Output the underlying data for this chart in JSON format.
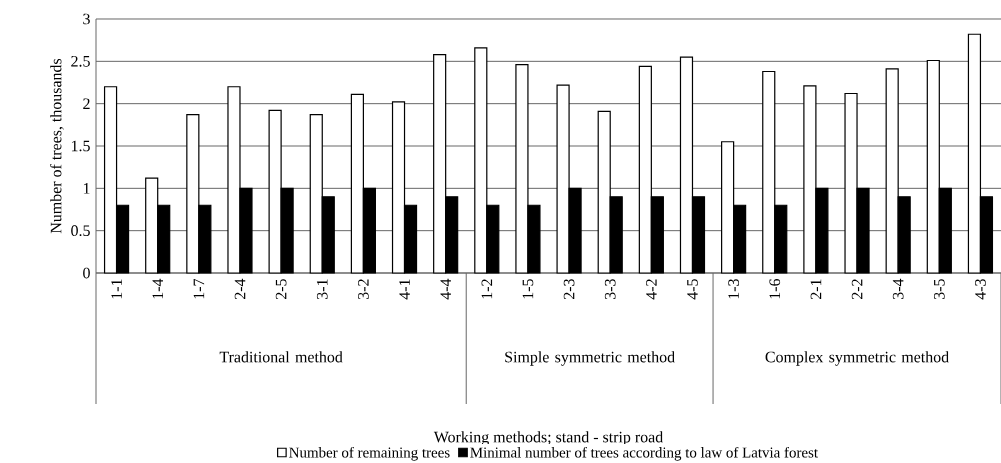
{
  "chart_data": {
    "type": "bar",
    "ylabel": "Number of trees, thousands",
    "categories": [
      "1-1",
      "1-4",
      "1-7",
      "2-4",
      "2-5",
      "3-1",
      "3-2",
      "4-1",
      "4-4",
      "1-2",
      "1-5",
      "2-3",
      "3-3",
      "4-2",
      "4-5",
      "1-3",
      "1-6",
      "2-1",
      "2-2",
      "3-4",
      "3-5",
      "4-3"
    ],
    "series": [
      {
        "name": "Number of remaining trees",
        "color": "#ffffff",
        "values": [
          2.2,
          1.12,
          1.87,
          2.2,
          1.92,
          1.87,
          2.11,
          2.02,
          2.58,
          2.66,
          2.46,
          2.22,
          1.91,
          2.44,
          2.55,
          1.55,
          2.38,
          2.21,
          2.12,
          2.41,
          2.51,
          2.82
        ]
      },
      {
        "name": "Minimal number of trees according to law of Latvia forest",
        "color": "#000000",
        "values": [
          0.8,
          0.8,
          0.8,
          1,
          1,
          0.9,
          1,
          0.8,
          0.9,
          0.8,
          0.8,
          1,
          0.9,
          0.9,
          0.9,
          0.8,
          0.8,
          1,
          1,
          0.9,
          1,
          0.9
        ]
      }
    ],
    "ylim": [
      0,
      3
    ],
    "yticks": [
      0,
      0.5,
      1,
      1.5,
      2,
      2.5,
      3
    ],
    "grid": "y",
    "legend": "bottom",
    "annotations": [
      "Traditional method",
      "Simple symmetric method",
      "Complex symmetric method",
      "Working methods; stand - strip road"
    ]
  }
}
